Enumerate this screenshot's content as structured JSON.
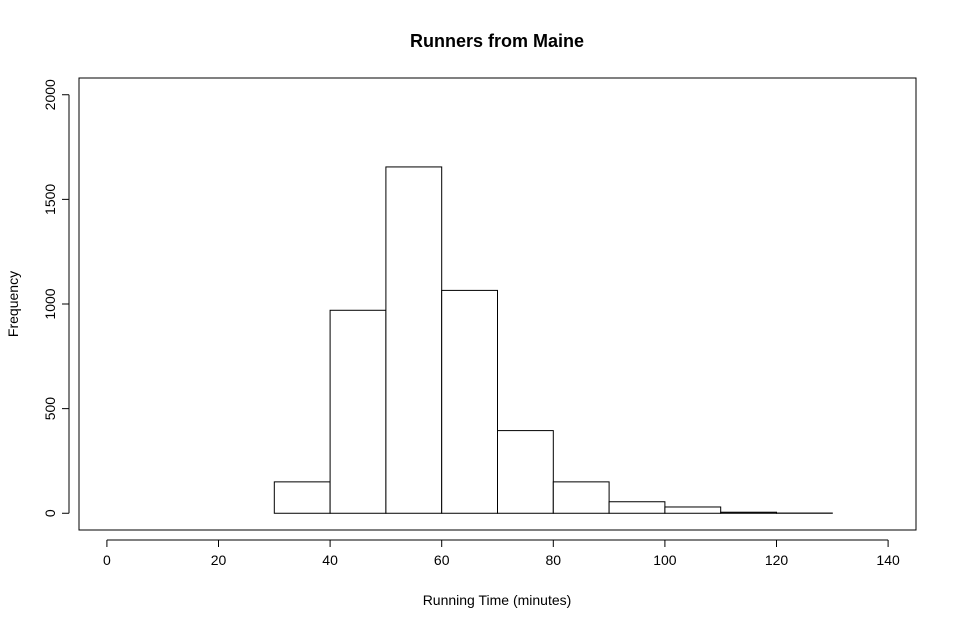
{
  "chart_data": {
    "type": "bar",
    "title": "Runners from Maine",
    "xlabel": "Running Time (minutes)",
    "ylabel": "Frequency",
    "xlim": [
      -5,
      145
    ],
    "ylim": [
      -80,
      2080
    ],
    "grid": false,
    "x_ticks": [
      0,
      20,
      40,
      60,
      80,
      100,
      120,
      140
    ],
    "y_ticks": [
      0,
      500,
      1000,
      1500,
      2000
    ],
    "bins": [
      {
        "start": 30,
        "end": 40,
        "value": 150
      },
      {
        "start": 40,
        "end": 50,
        "value": 970
      },
      {
        "start": 50,
        "end": 60,
        "value": 1655
      },
      {
        "start": 60,
        "end": 70,
        "value": 1065
      },
      {
        "start": 70,
        "end": 80,
        "value": 395
      },
      {
        "start": 80,
        "end": 90,
        "value": 150
      },
      {
        "start": 90,
        "end": 100,
        "value": 55
      },
      {
        "start": 100,
        "end": 110,
        "value": 30
      },
      {
        "start": 110,
        "end": 120,
        "value": 5
      },
      {
        "start": 120,
        "end": 130,
        "value": 1
      },
      {
        "start": 130,
        "end": 140,
        "value": 0
      },
      {
        "start": 140,
        "end": 150,
        "value": 0
      }
    ]
  }
}
